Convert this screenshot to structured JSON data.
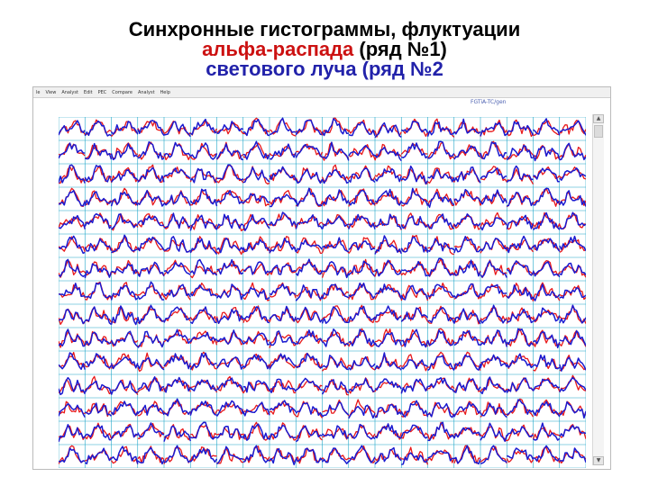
{
  "slide": {
    "title_line1": "Синхронные гистограммы, флуктуации",
    "title_line2_red": "альфа-распада",
    "title_line2_rest": " (ряд №1)",
    "title_line3": "светового луча (ряд №2"
  },
  "window": {
    "menu": [
      {
        "label": "le"
      },
      {
        "label": "View"
      },
      {
        "label": "Analyst"
      },
      {
        "label": "Edit"
      },
      {
        "label": "PEC"
      },
      {
        "label": "Compare"
      },
      {
        "label": "Analyst"
      },
      {
        "label": "Help"
      }
    ],
    "status_text": "FGTiA-TC/gen",
    "scroll_up_glyph": "▲",
    "scroll_down_glyph": "▼"
  },
  "colors": {
    "series1": "#e8181a",
    "series2": "#1a1ad0",
    "grid_line": "#1fa6c8"
  },
  "grid": {
    "rows": 15,
    "cols": 20,
    "series": [
      "альфа-распад (ряд №1)",
      "световой луч (ряд №2)"
    ]
  }
}
